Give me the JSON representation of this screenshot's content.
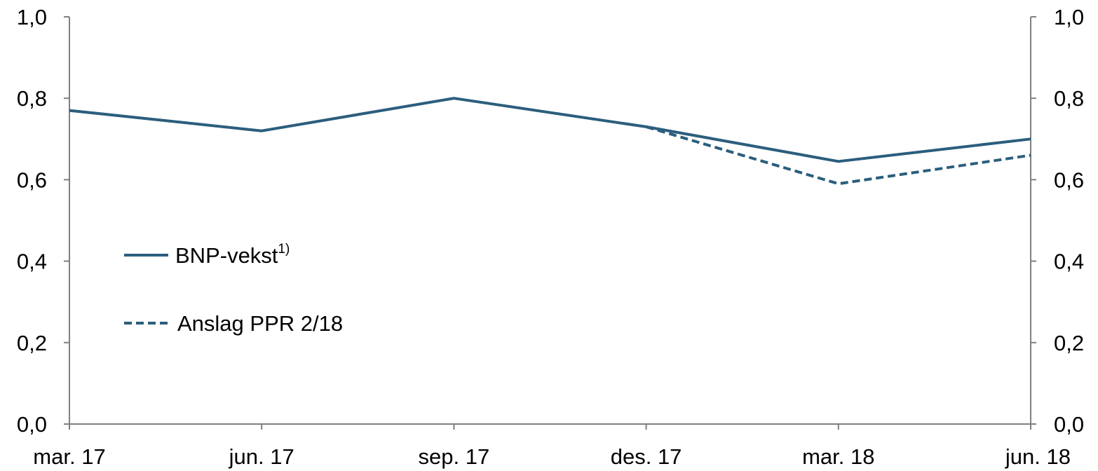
{
  "chart_data": {
    "type": "line",
    "categories": [
      "mar. 17",
      "jun. 17",
      "sep. 17",
      "des. 17",
      "mar. 18",
      "jun. 18"
    ],
    "ylim": [
      0.0,
      1.0
    ],
    "y_ticks": [
      "0,0",
      "0,2",
      "0,4",
      "0,6",
      "0,8",
      "1,0"
    ],
    "y_tick_values": [
      0.0,
      0.2,
      0.4,
      0.6,
      0.8,
      1.0
    ],
    "grid": false,
    "dual_y_axis": true,
    "legend_position": "left",
    "series": [
      {
        "name": "BNP-vekst",
        "name_superscript": "1)",
        "style": "solid",
        "color": "#2B5D7C",
        "values": [
          0.77,
          0.72,
          0.8,
          0.73,
          0.645,
          0.7
        ]
      },
      {
        "name": "Anslag PPR 2/18",
        "style": "dashed",
        "color": "#2B5D7C",
        "values": [
          null,
          null,
          null,
          0.73,
          0.59,
          0.66
        ]
      }
    ]
  }
}
